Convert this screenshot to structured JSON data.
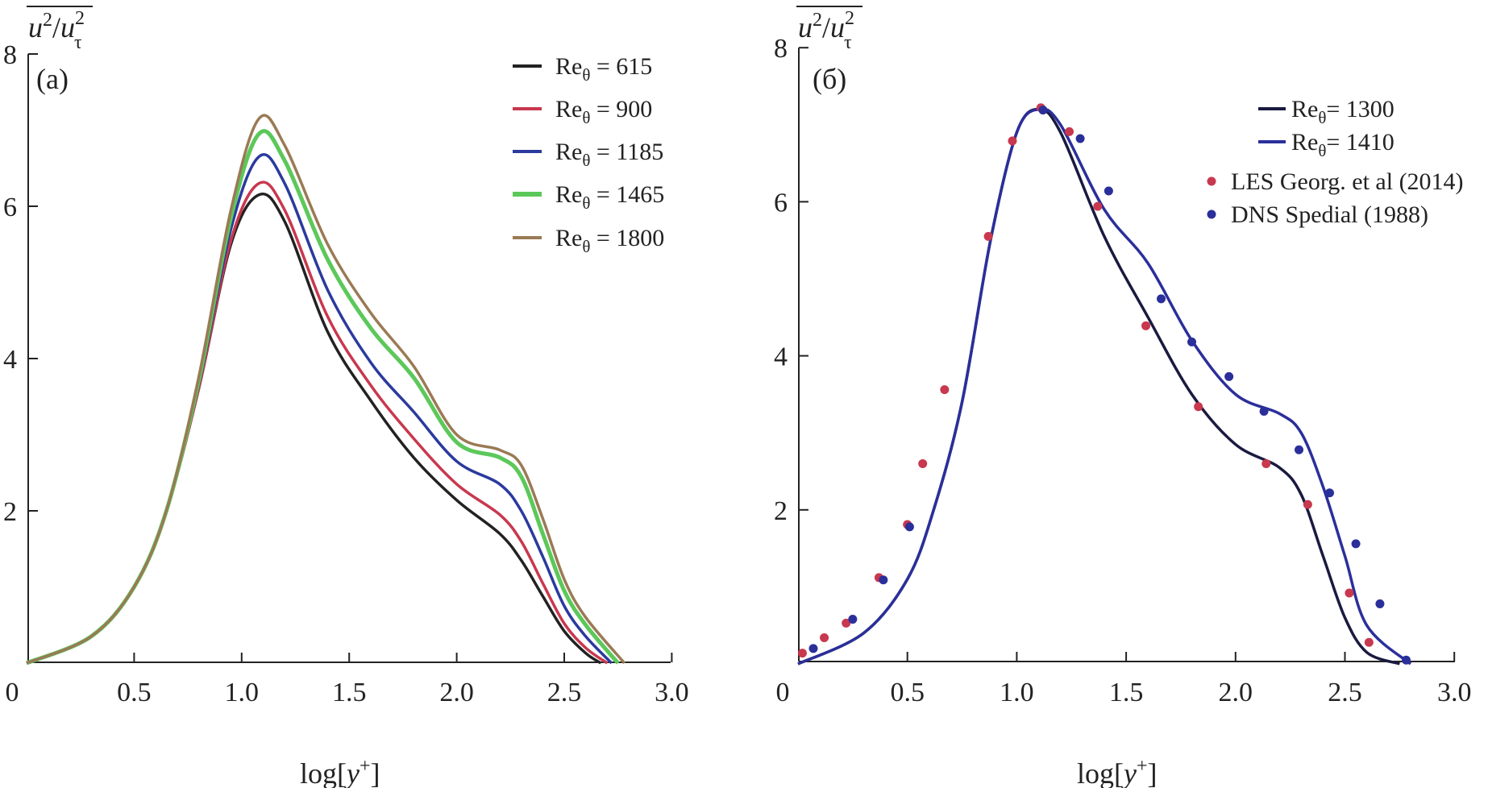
{
  "chart_data": [
    {
      "type": "line",
      "panel_label": "(a)",
      "ylabel": "u²/u_τ² (overlined)",
      "ylabel_parts": {
        "base": "u",
        "sup": "2",
        "sep": "/",
        "base2": "u",
        "sub2": "τ",
        "sup2": "2"
      },
      "xlabel_parts": {
        "pre": "log[",
        "var": "y",
        "sup": "+",
        "post": "]"
      },
      "xlim": [
        0,
        3.0
      ],
      "ylim": [
        0,
        8
      ],
      "xticks": [
        "0",
        "0.5",
        "1.0",
        "1.5",
        "2.0",
        "2.5",
        "3.0"
      ],
      "yticks": [
        "2",
        "4",
        "6",
        "8"
      ],
      "grid": false,
      "legend_placement": "top-right",
      "series": [
        {
          "name": "Reθ = 615",
          "name_parts": [
            "Re",
            "θ",
            " = 615"
          ],
          "color": "#222222",
          "x": [
            0,
            0.3,
            0.5,
            0.65,
            0.8,
            0.95,
            1.08,
            1.2,
            1.4,
            1.6,
            1.8,
            2.0,
            2.2,
            2.3,
            2.4,
            2.5,
            2.6,
            2.67
          ],
          "y": [
            0,
            0.35,
            1.0,
            2.0,
            3.6,
            5.5,
            6.15,
            5.8,
            4.35,
            3.45,
            2.7,
            2.14,
            1.7,
            1.35,
            0.88,
            0.42,
            0.13,
            0
          ]
        },
        {
          "name": "Reθ = 900",
          "name_parts": [
            "Re",
            "θ",
            " = 900"
          ],
          "color": "#c8384e",
          "x": [
            0,
            0.3,
            0.5,
            0.65,
            0.8,
            0.95,
            1.08,
            1.2,
            1.4,
            1.6,
            1.8,
            2.0,
            2.2,
            2.3,
            2.4,
            2.5,
            2.6,
            2.7
          ],
          "y": [
            0,
            0.35,
            1.0,
            2.0,
            3.6,
            5.55,
            6.3,
            5.95,
            4.55,
            3.65,
            2.95,
            2.35,
            1.95,
            1.6,
            1.05,
            0.52,
            0.2,
            0
          ]
        },
        {
          "name": "Reθ = 1185",
          "name_parts": [
            "Re",
            "θ",
            " = 1185"
          ],
          "color": "#2b3a9e",
          "x": [
            0,
            0.3,
            0.5,
            0.65,
            0.8,
            0.95,
            1.08,
            1.2,
            1.4,
            1.6,
            1.8,
            2.0,
            2.2,
            2.3,
            2.4,
            2.5,
            2.6,
            2.72
          ],
          "y": [
            0,
            0.35,
            1.0,
            2.0,
            3.65,
            5.7,
            6.65,
            6.3,
            4.9,
            3.95,
            3.3,
            2.65,
            2.35,
            2.0,
            1.4,
            0.75,
            0.35,
            0
          ]
        },
        {
          "name": "Reθ = 1465",
          "name_parts": [
            "Re",
            "θ",
            " = 1465"
          ],
          "color": "#5cc85a",
          "x": [
            0,
            0.3,
            0.5,
            0.65,
            0.8,
            0.95,
            1.08,
            1.2,
            1.4,
            1.6,
            1.8,
            2.0,
            2.2,
            2.3,
            2.4,
            2.5,
            2.6,
            2.75
          ],
          "y": [
            0,
            0.35,
            1.0,
            2.0,
            3.7,
            5.85,
            6.95,
            6.6,
            5.3,
            4.4,
            3.75,
            2.9,
            2.7,
            2.45,
            1.7,
            0.95,
            0.5,
            0
          ]
        },
        {
          "name": "Reθ = 1800",
          "name_parts": [
            "Re",
            "θ",
            " = 1800"
          ],
          "color": "#9a7a55",
          "x": [
            0,
            0.3,
            0.5,
            0.65,
            0.8,
            0.95,
            1.08,
            1.2,
            1.4,
            1.6,
            1.8,
            2.0,
            2.2,
            2.3,
            2.4,
            2.5,
            2.6,
            2.78
          ],
          "y": [
            0,
            0.35,
            1.0,
            2.0,
            3.75,
            5.95,
            7.15,
            6.8,
            5.5,
            4.6,
            3.9,
            3.0,
            2.8,
            2.6,
            1.9,
            1.1,
            0.6,
            0
          ]
        }
      ]
    },
    {
      "type": "line",
      "panel_label": "(б)",
      "ylabel_parts": {
        "base": "u",
        "sup": "2",
        "sep": "/",
        "base2": "u",
        "sub2": "τ",
        "sup2": "2"
      },
      "xlabel_parts": {
        "pre": "log[",
        "var": "y",
        "sup": "+",
        "post": "]"
      },
      "xlim": [
        0,
        3.0
      ],
      "ylim": [
        0,
        8
      ],
      "xticks": [
        "0",
        "0.5",
        "1.0",
        "1.5",
        "2.0",
        "2.5",
        "3.0"
      ],
      "yticks": [
        "2",
        "4",
        "6",
        "8"
      ],
      "grid": false,
      "legend_placement": "top-right",
      "series": [
        {
          "name": "Reθ= 1300",
          "name_parts": [
            "Re",
            "θ",
            "= 1300"
          ],
          "color": "#1a1a40",
          "kind": "line",
          "x": [
            0,
            0.3,
            0.5,
            0.62,
            0.75,
            0.88,
            1.0,
            1.1,
            1.2,
            1.4,
            1.6,
            1.8,
            2.0,
            2.2,
            2.3,
            2.4,
            2.5,
            2.6,
            2.75
          ],
          "y": [
            0,
            0.4,
            1.1,
            2.0,
            3.4,
            5.5,
            6.9,
            7.2,
            6.9,
            5.55,
            4.5,
            3.5,
            2.85,
            2.55,
            2.2,
            1.4,
            0.6,
            0.15,
            0
          ]
        },
        {
          "name": "Reθ= 1410",
          "name_parts": [
            "Re",
            "θ",
            "= 1410"
          ],
          "color": "#2b2f9a",
          "kind": "line",
          "x": [
            0,
            0.3,
            0.5,
            0.62,
            0.75,
            0.88,
            1.0,
            1.1,
            1.2,
            1.4,
            1.6,
            1.8,
            2.0,
            2.2,
            2.3,
            2.4,
            2.5,
            2.6,
            2.8
          ],
          "y": [
            0,
            0.4,
            1.1,
            2.0,
            3.4,
            5.5,
            6.9,
            7.2,
            7.0,
            5.9,
            5.2,
            4.2,
            3.5,
            3.25,
            3.0,
            2.3,
            1.4,
            0.5,
            0
          ]
        },
        {
          "name": "LES Georg. et al (2014)",
          "color": "#c8384e",
          "kind": "scatter",
          "x": [
            0.02,
            0.12,
            0.22,
            0.37,
            0.5,
            0.57,
            0.67,
            0.87,
            0.98,
            1.11,
            1.24,
            1.37,
            1.59,
            1.83,
            2.14,
            2.33,
            2.52,
            2.61
          ],
          "y": [
            0.14,
            0.34,
            0.53,
            1.12,
            1.81,
            2.6,
            3.56,
            5.55,
            6.79,
            7.22,
            6.91,
            5.94,
            4.39,
            3.34,
            2.6,
            2.07,
            0.92,
            0.28
          ]
        },
        {
          "name": "DNS Spedial (1988)",
          "color": "#2b2f9a",
          "kind": "scatter",
          "x": [
            0.07,
            0.25,
            0.39,
            0.51,
            1.12,
            1.29,
            1.42,
            1.66,
            1.8,
            1.97,
            2.13,
            2.29,
            2.43,
            2.55,
            2.66,
            2.78
          ],
          "y": [
            0.2,
            0.58,
            1.09,
            1.78,
            7.19,
            6.82,
            6.14,
            4.74,
            4.18,
            3.73,
            3.28,
            2.78,
            2.22,
            1.56,
            0.78,
            0.05
          ]
        }
      ]
    }
  ]
}
